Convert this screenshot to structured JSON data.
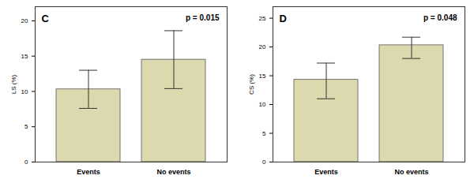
{
  "chart_data": [
    {
      "type": "bar",
      "title": "C",
      "annotation": "p = 0.015",
      "y_label": "LS (%)",
      "categories": [
        "Events",
        "No events"
      ],
      "values": [
        10.3,
        14.5
      ],
      "error_low": [
        7.6,
        10.4
      ],
      "error_high": [
        13.0,
        18.6
      ],
      "color": "#ddd9ae",
      "ylim": [
        0,
        22
      ],
      "yticks": [
        0,
        5,
        10,
        15,
        20
      ],
      "grid": false
    },
    {
      "type": "bar",
      "title": "D",
      "annotation": "p = 0.048",
      "y_label": "CS (%)",
      "categories": [
        "Events",
        "No events"
      ],
      "values": [
        14.3,
        20.3
      ],
      "error_low": [
        11.0,
        18.0
      ],
      "error_high": [
        17.2,
        21.7
      ],
      "color": "#ddd9ae",
      "ylim": [
        0,
        27
      ],
      "yticks": [
        0,
        5,
        10,
        15,
        20,
        25
      ],
      "grid": false
    }
  ]
}
